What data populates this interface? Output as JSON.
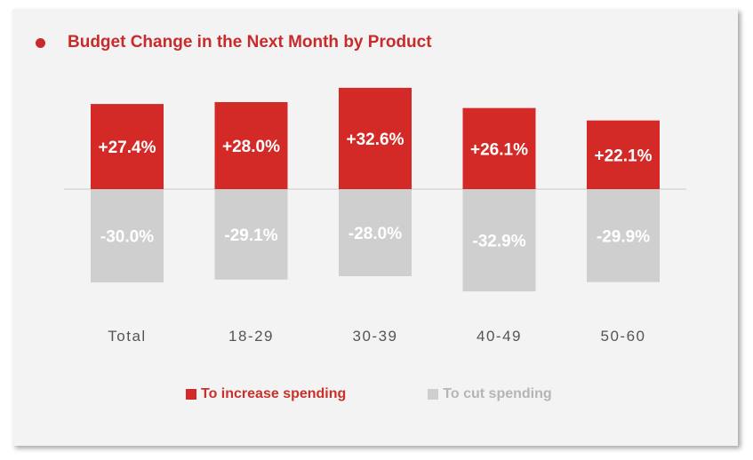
{
  "colors": {
    "increase": "#d42a27",
    "cut": "#cfcfcf",
    "card_bg": "#f3f3f3",
    "axis": "#c8c8c8",
    "title": "#c92a2a",
    "category_text": "#555555",
    "legend_increase_text": "#c9302c",
    "legend_cut_text": "#b5b5b5"
  },
  "chart_data": {
    "type": "bar",
    "title": "Budget Change in the Next Month by Product",
    "categories": [
      "Total",
      "18-29",
      "30-39",
      "40-49",
      "50-60"
    ],
    "series": [
      {
        "name": "To increase spending",
        "values": [
          27.4,
          28.0,
          32.6,
          26.1,
          22.1
        ],
        "labels": [
          "+27.4%",
          "+28.0%",
          "+32.6%",
          "+26.1%",
          "+22.1%"
        ]
      },
      {
        "name": "To cut spending",
        "values": [
          -30.0,
          -29.1,
          -28.0,
          -32.9,
          -29.9
        ],
        "labels": [
          "-30.0%",
          "-29.1%",
          "-28.0%",
          "-32.9%",
          "-29.9%"
        ]
      }
    ],
    "ylim": [
      -35,
      35
    ],
    "grid": false,
    "legend_position": "bottom"
  }
}
